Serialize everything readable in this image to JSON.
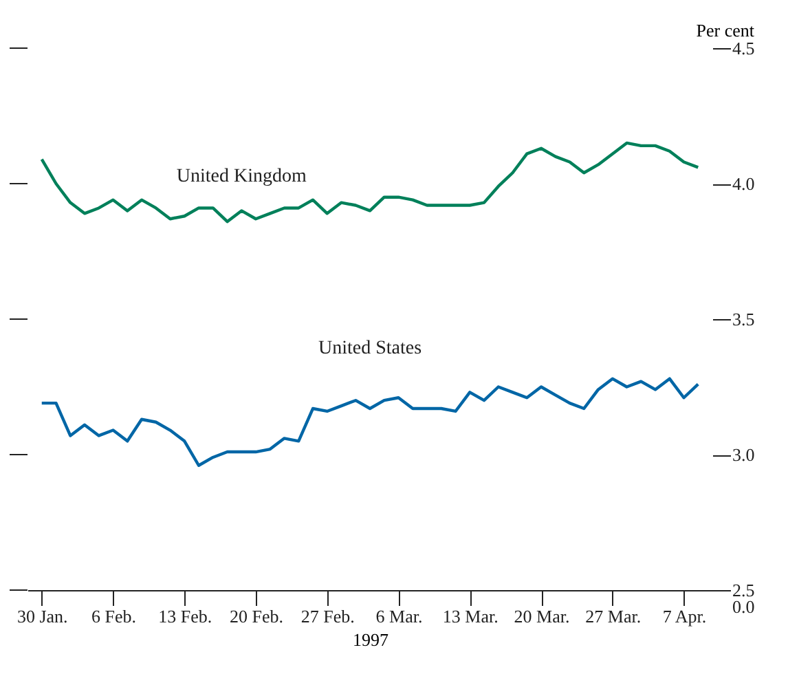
{
  "chart_data": {
    "type": "line",
    "ylabel": "Per cent",
    "xlabel": "1997",
    "categories": [
      "30 Jan.",
      null,
      null,
      null,
      null,
      "6 Feb.",
      null,
      null,
      null,
      null,
      "13 Feb.",
      null,
      null,
      null,
      null,
      "20 Feb.",
      null,
      null,
      null,
      null,
      "27 Feb.",
      null,
      null,
      null,
      null,
      "6 Mar.",
      null,
      null,
      null,
      null,
      "13 Mar.",
      null,
      null,
      null,
      null,
      "20 Mar.",
      null,
      null,
      null,
      null,
      "27 Mar.",
      null,
      null,
      null,
      null,
      "7 Apr.",
      null
    ],
    "series": [
      {
        "name": "United Kingdom",
        "color": "#00805a",
        "values": [
          4.09,
          4.0,
          3.93,
          3.89,
          3.91,
          3.94,
          3.9,
          3.94,
          3.91,
          3.87,
          3.88,
          3.91,
          3.91,
          3.86,
          3.9,
          3.87,
          3.89,
          3.91,
          3.91,
          3.94,
          3.89,
          3.93,
          3.92,
          3.9,
          3.95,
          3.95,
          3.94,
          3.92,
          3.92,
          3.92,
          3.92,
          3.93,
          3.99,
          4.04,
          4.11,
          4.13,
          4.1,
          4.08,
          4.04,
          4.07,
          4.11,
          4.15,
          4.14,
          4.14,
          4.12,
          4.08,
          4.06
        ]
      },
      {
        "name": "United States",
        "color": "#0066a6",
        "values": [
          3.19,
          3.19,
          3.07,
          3.11,
          3.07,
          3.09,
          3.05,
          3.13,
          3.12,
          3.09,
          3.05,
          2.96,
          2.99,
          3.01,
          3.01,
          3.01,
          3.02,
          3.06,
          3.05,
          3.17,
          3.16,
          3.18,
          3.2,
          3.17,
          3.2,
          3.21,
          3.17,
          3.17,
          3.17,
          3.16,
          3.23,
          3.2,
          3.25,
          3.23,
          3.21,
          3.25,
          3.22,
          3.19,
          3.17,
          3.24,
          3.28,
          3.25,
          3.27,
          3.24,
          3.28,
          3.21,
          3.26
        ]
      }
    ],
    "ylim": [
      2.5,
      4.5
    ],
    "yticks": [
      {
        "value": 2.5,
        "label": "2.5\n0.0"
      },
      {
        "value": 3.0,
        "label": "3.0"
      },
      3.5,
      {
        "value": 4.0,
        "label": "4.0"
      },
      4.5
    ],
    "grid": false,
    "line_style": "solid",
    "marker": "none"
  }
}
